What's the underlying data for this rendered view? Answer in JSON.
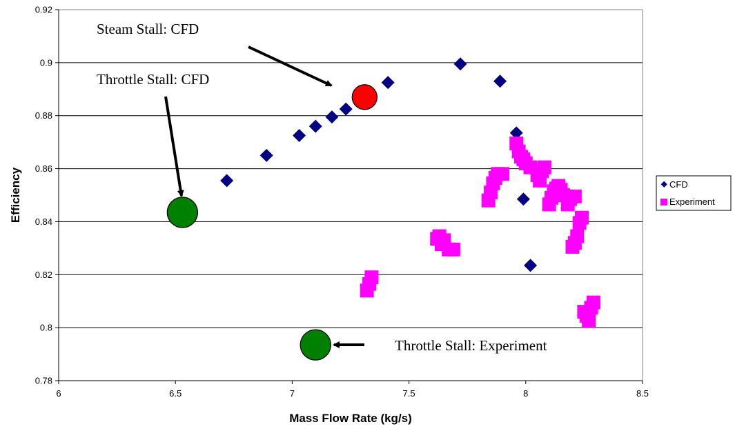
{
  "chart_data": {
    "type": "scatter",
    "xlabel": "Mass Flow Rate (kg/s)",
    "ylabel": "Efficiency",
    "xlim": [
      6,
      8.5
    ],
    "ylim": [
      0.78,
      0.92
    ],
    "x_ticks": [
      "6",
      "6.5",
      "7",
      "7.5",
      "8",
      "8.5"
    ],
    "y_ticks": [
      "0.78",
      "0.8",
      "0.82",
      "0.84",
      "0.86",
      "0.88",
      "0.9",
      "0.92"
    ],
    "grid": "horizontal",
    "legend_position": "right",
    "series": [
      {
        "name": "CFD",
        "marker": "diamond",
        "color": "#000080",
        "points": [
          [
            6.72,
            0.8555
          ],
          [
            6.89,
            0.865
          ],
          [
            7.03,
            0.8725
          ],
          [
            7.1,
            0.876
          ],
          [
            7.17,
            0.8795
          ],
          [
            7.23,
            0.8825
          ],
          [
            7.41,
            0.8925
          ],
          [
            7.72,
            0.8995
          ],
          [
            7.89,
            0.893
          ],
          [
            7.96,
            0.8735
          ],
          [
            7.99,
            0.8485
          ],
          [
            8.02,
            0.8235
          ]
        ]
      },
      {
        "name": "Experiment",
        "marker": "square",
        "color": "#FF00FF",
        "points": [
          [
            7.32,
            0.814
          ],
          [
            7.33,
            0.8165
          ],
          [
            7.34,
            0.819
          ],
          [
            7.62,
            0.8335
          ],
          [
            7.63,
            0.8345
          ],
          [
            7.64,
            0.8315
          ],
          [
            7.65,
            0.833
          ],
          [
            7.67,
            0.8295
          ],
          [
            7.69,
            0.8295
          ],
          [
            7.84,
            0.848
          ],
          [
            7.85,
            0.851
          ],
          [
            7.86,
            0.8545
          ],
          [
            7.87,
            0.8565
          ],
          [
            7.88,
            0.858
          ],
          [
            7.9,
            0.858
          ],
          [
            7.96,
            0.8695
          ],
          [
            7.97,
            0.8665
          ],
          [
            7.98,
            0.8645
          ],
          [
            7.99,
            0.8635
          ],
          [
            8.0,
            0.862
          ],
          [
            8.02,
            0.8605
          ],
          [
            8.05,
            0.8575
          ],
          [
            8.06,
            0.8555
          ],
          [
            8.07,
            0.859
          ],
          [
            8.08,
            0.8605
          ],
          [
            8.1,
            0.8465
          ],
          [
            8.11,
            0.849
          ],
          [
            8.12,
            0.8515
          ],
          [
            8.13,
            0.8525
          ],
          [
            8.14,
            0.8535
          ],
          [
            8.15,
            0.852
          ],
          [
            8.16,
            0.85
          ],
          [
            8.18,
            0.8465
          ],
          [
            8.19,
            0.8485
          ],
          [
            8.21,
            0.8495
          ],
          [
            8.2,
            0.8305
          ],
          [
            8.21,
            0.832
          ],
          [
            8.22,
            0.8345
          ],
          [
            8.23,
            0.8395
          ],
          [
            8.24,
            0.8415
          ],
          [
            8.25,
            0.806
          ],
          [
            8.26,
            0.8045
          ],
          [
            8.27,
            0.8025
          ],
          [
            8.28,
            0.8075
          ],
          [
            8.29,
            0.8095
          ]
        ]
      }
    ],
    "annotations": [
      {
        "text": "Steam Stall: CFD",
        "marker_x": 7.31,
        "marker_y": 0.887,
        "marker_color": "#FF0000"
      },
      {
        "text": "Throttle Stall: CFD",
        "marker_x": 6.53,
        "marker_y": 0.8435,
        "marker_color": "#008000"
      },
      {
        "text": "Throttle Stall: Experiment",
        "marker_x": 7.1,
        "marker_y": 0.7935,
        "marker_color": "#008000"
      }
    ]
  }
}
